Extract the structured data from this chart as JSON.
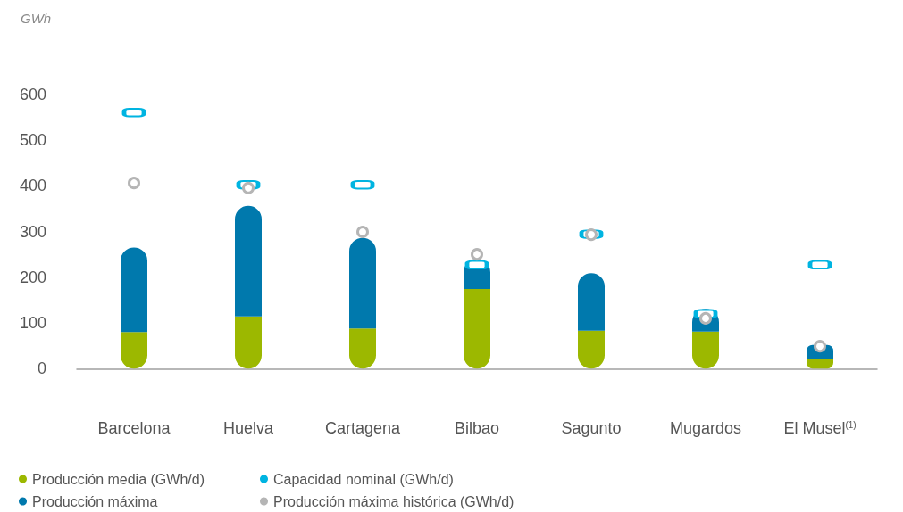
{
  "chart_data": {
    "type": "bar",
    "stacked": true,
    "ylabel": "GWh",
    "categories": [
      "Barcelona",
      "Huelva",
      "Cartagena",
      "Bilbao",
      "Sagunto",
      "Mugardos",
      "El Musel$^{(1)}$"
    ],
    "series": [
      {
        "name": "Producción media (GWh/d)",
        "color": "#9cb800",
        "values": [
          80,
          114,
          88,
          174,
          83,
          81,
          22
        ]
      },
      {
        "name": "Producción máxima",
        "color": "#0079ad",
        "values": [
          185,
          242,
          198,
          66,
          126,
          50,
          30
        ]
      },
      {
        "name": "Capacidad nominal (GWh/d)",
        "type": "scatter",
        "marker": "square",
        "color": "#00b4e1",
        "x": [
          "Barcelona",
          "Huelva",
          "Cartagena",
          "Bilbao",
          "Sagunto",
          "Mugardos",
          "El Musel$^{(1)}$"
        ],
        "values": [
          560,
          402,
          402,
          227,
          294,
          120,
          227
        ]
      },
      {
        "name": "Producción máxima histórica (GWh/d)",
        "type": "scatter",
        "marker": "circle",
        "color": "#b5b5b5",
        "x": [
          "Barcelona",
          "Huelva",
          "Cartagena",
          "Bilbao",
          "Sagunto",
          "Mugardos",
          "El Musel$^{(1)}$"
        ],
        "values": [
          406,
          395,
          299,
          250,
          293,
          110,
          49
        ]
      }
    ],
    "ylim": [
      0,
      600
    ],
    "yticks": [
      0,
      100,
      200,
      300,
      400,
      500,
      600
    ],
    "grid": false,
    "legend": "bottom left"
  }
}
